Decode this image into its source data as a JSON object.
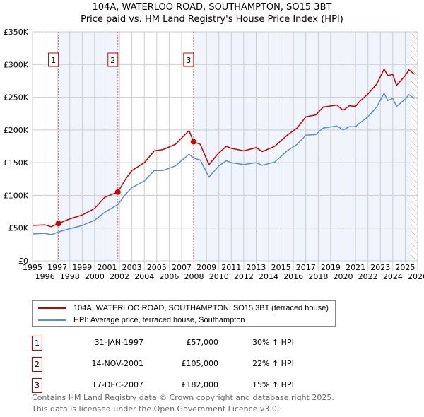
{
  "title": "104A, WATERLOO ROAD, SOUTHAMPTON, SO15 3BT",
  "subtitle": "Price paid vs. HM Land Registry's House Price Index (HPI)",
  "chart_data": {
    "type": "line",
    "xlim": [
      1995,
      2026
    ],
    "ylim": [
      0,
      350000
    ],
    "yticks": [
      {
        "v": 0,
        "label": "£0"
      },
      {
        "v": 50000,
        "label": "£50K"
      },
      {
        "v": 100000,
        "label": "£100K"
      },
      {
        "v": 150000,
        "label": "£150K"
      },
      {
        "v": 200000,
        "label": "£200K"
      },
      {
        "v": 250000,
        "label": "£250K"
      },
      {
        "v": 300000,
        "label": "£300K"
      },
      {
        "v": 350000,
        "label": "£350K"
      }
    ],
    "xticks": [
      "1995",
      "1996",
      "1997",
      "1998",
      "1999",
      "2000",
      "2001",
      "2002",
      "2003",
      "2004",
      "2005",
      "2006",
      "2007",
      "2008",
      "2009",
      "2010",
      "2011",
      "2012",
      "2013",
      "2014",
      "2015",
      "2016",
      "2017",
      "2018",
      "2019",
      "2020",
      "2021",
      "2022",
      "2023",
      "2024",
      "2025",
      "2026"
    ],
    "series": [
      {
        "name": "104A, WATERLOO ROAD, SOUTHAMPTON, SO15 3BT (terraced house)",
        "color": "#cc0000",
        "x": [
          1995,
          1996,
          1996.5,
          1997.08,
          1998,
          1999,
          2000,
          2000.8,
          2001.87,
          2002.5,
          2003,
          2004,
          2004.8,
          2005.5,
          2006.5,
          2007.6,
          2007.96,
          2008.5,
          2009.2,
          2010,
          2010.6,
          2011,
          2012,
          2013,
          2013.5,
          2014.5,
          2015.5,
          2016.3,
          2017,
          2017.8,
          2018.4,
          2019.5,
          2020,
          2020.5,
          2021,
          2021.3,
          2022,
          2022.7,
          2023.3,
          2023.6,
          2024,
          2024.3,
          2025,
          2025.3,
          2025.75
        ],
        "y": [
          54000,
          55000,
          52000,
          57000,
          64000,
          70000,
          80000,
          97000,
          105000,
          125000,
          138000,
          150000,
          168000,
          170000,
          178000,
          199000,
          182000,
          178000,
          147000,
          165000,
          175000,
          172000,
          168000,
          173000,
          167000,
          175000,
          192000,
          203000,
          220000,
          223000,
          235000,
          238000,
          230000,
          237000,
          236000,
          243000,
          255000,
          270000,
          293000,
          283000,
          285000,
          268000,
          283000,
          292000,
          285000
        ]
      },
      {
        "name": "HPI: Average price, terraced house, Southampton",
        "color": "#5b8fd0",
        "x": [
          1995,
          1996,
          1996.5,
          1997.08,
          1998,
          1999,
          2000,
          2000.8,
          2001.87,
          2002.5,
          2003,
          2004,
          2004.8,
          2005.5,
          2006.5,
          2007.6,
          2007.96,
          2008.5,
          2009.2,
          2010,
          2010.6,
          2011,
          2012,
          2013,
          2013.5,
          2014.5,
          2015.5,
          2016.3,
          2017,
          2017.8,
          2018.4,
          2019.5,
          2020,
          2020.5,
          2021,
          2021.3,
          2022,
          2022.7,
          2023.3,
          2023.6,
          2024,
          2024.3,
          2025,
          2025.3,
          2025.75
        ],
        "y": [
          41000,
          42000,
          40000,
          44000,
          49000,
          54000,
          62000,
          74000,
          86000,
          102000,
          112000,
          122000,
          138000,
          138000,
          145000,
          163000,
          157000,
          154000,
          128000,
          145000,
          153000,
          150000,
          147000,
          150000,
          146000,
          151000,
          168000,
          178000,
          192000,
          193000,
          203000,
          206000,
          200000,
          205000,
          205000,
          210000,
          220000,
          235000,
          256000,
          245000,
          248000,
          236000,
          247000,
          254000,
          248000
        ]
      }
    ],
    "sales": [
      {
        "id": "1",
        "x": 1997.08,
        "price": 57000,
        "date": "31-JAN-1997",
        "price_label": "£57,000",
        "hpi": "30% ↑ HPI"
      },
      {
        "id": "2",
        "x": 2001.87,
        "price": 105000,
        "date": "14-NOV-2001",
        "price_label": "£105,000",
        "hpi": "22% ↑ HPI"
      },
      {
        "id": "3",
        "x": 2007.96,
        "price": 182000,
        "date": "17-DEC-2007",
        "price_label": "£182,000",
        "hpi": "15% ↑ HPI"
      }
    ],
    "data_end": 2025.5
  },
  "footer": [
    "Contains HM Land Registry data © Crown copyright and database right 2025.",
    "This data is licensed under the Open Government Licence v3.0."
  ]
}
